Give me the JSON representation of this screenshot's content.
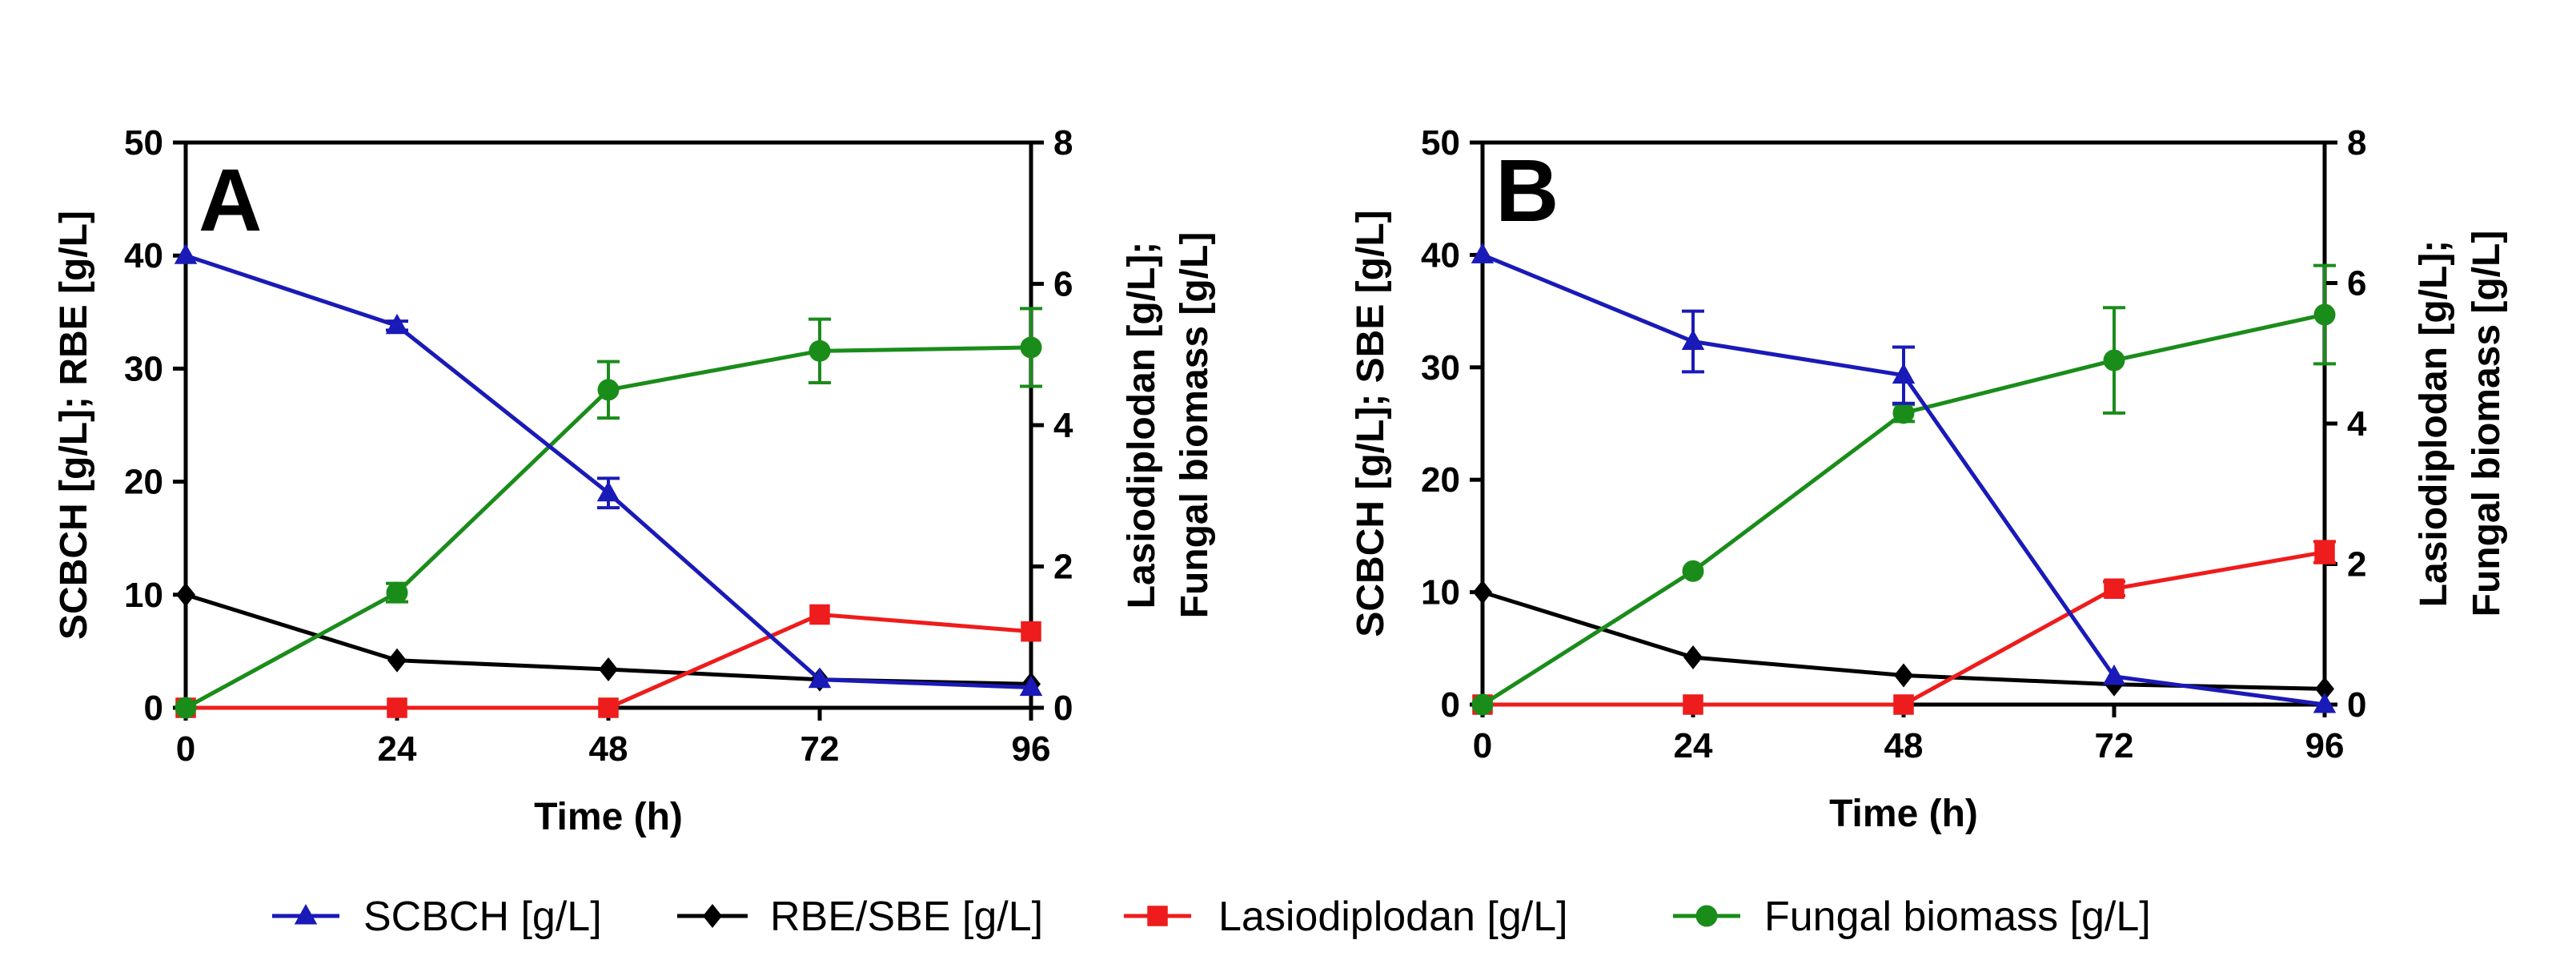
{
  "chart_data": [
    {
      "type": "line",
      "panel_label": "A",
      "xlabel": "Time (h)",
      "ylabel_left": "SCBCH [g/L]; RBE [g/L]",
      "ylabel_right_lines": [
        "Lasiodiplodan [g/L];",
        "Fungal biomass [g/L]"
      ],
      "x": [
        0,
        24,
        48,
        72,
        96
      ],
      "xticks": [
        "0",
        "24",
        "48",
        "72",
        "96"
      ],
      "ylim_left": [
        0,
        50
      ],
      "yticks_left": [
        "0",
        "10",
        "20",
        "30",
        "40",
        "50"
      ],
      "ylim_right": [
        0,
        8
      ],
      "yticks_right": [
        "0",
        "2",
        "4",
        "6",
        "8"
      ],
      "series": [
        {
          "name": "SCBCH [g/L]",
          "axis": "left",
          "color": "#1a1ab8",
          "marker": "triangle",
          "values": [
            40.0,
            33.8,
            19.0,
            2.5,
            1.8
          ],
          "errors": [
            0,
            0.4,
            1.3,
            0,
            0
          ]
        },
        {
          "name": "RBE/SBE [g/L]",
          "axis": "left",
          "color": "#000000",
          "marker": "diamond",
          "values": [
            10.0,
            4.2,
            3.4,
            2.5,
            2.1
          ],
          "errors": [
            0,
            0,
            0,
            0,
            0
          ]
        },
        {
          "name": "Lasiodiplodan [g/L]",
          "axis": "right",
          "color": "#ee1c1c",
          "marker": "square",
          "values": [
            0.0,
            0.0,
            0.0,
            1.32,
            1.08
          ],
          "errors": [
            0,
            0,
            0,
            0,
            0
          ]
        },
        {
          "name": "Fungal biomass [g/L]",
          "axis": "right",
          "color": "#1a8c1a",
          "marker": "circle",
          "values": [
            0.0,
            1.63,
            4.5,
            5.05,
            5.1
          ],
          "errors": [
            0,
            0.13,
            0.4,
            0.45,
            0.55
          ]
        }
      ]
    },
    {
      "type": "line",
      "panel_label": "B",
      "xlabel": "Time (h)",
      "ylabel_left": "SCBCH [g/L]; SBE [g/L]",
      "ylabel_right_lines": [
        "Lasiodiplodan [g/L];",
        "Fungal biomass [g/L]"
      ],
      "x": [
        0,
        24,
        48,
        72,
        96
      ],
      "xticks": [
        "0",
        "24",
        "48",
        "72",
        "96"
      ],
      "ylim_left": [
        0,
        50
      ],
      "yticks_left": [
        "0",
        "10",
        "20",
        "30",
        "40",
        "50"
      ],
      "ylim_right": [
        0,
        8
      ],
      "yticks_right": [
        "0",
        "2",
        "4",
        "6",
        "8"
      ],
      "series": [
        {
          "name": "SCBCH [g/L]",
          "axis": "left",
          "color": "#1a1ab8",
          "marker": "triangle",
          "values": [
            40.0,
            32.3,
            29.3,
            2.5,
            0.0
          ],
          "errors": [
            0,
            2.7,
            2.5,
            0,
            0
          ]
        },
        {
          "name": "RBE/SBE [g/L]",
          "axis": "left",
          "color": "#000000",
          "marker": "diamond",
          "values": [
            10.0,
            4.2,
            2.6,
            1.8,
            1.4
          ],
          "errors": [
            0,
            0,
            0,
            0,
            0
          ]
        },
        {
          "name": "Lasiodiplodan [g/L]",
          "axis": "right",
          "color": "#ee1c1c",
          "marker": "square",
          "values": [
            0.0,
            0.0,
            0.0,
            1.65,
            2.17
          ],
          "errors": [
            0,
            0,
            0,
            0.1,
            0.15
          ]
        },
        {
          "name": "Fungal biomass [g/L]",
          "axis": "right",
          "color": "#1a8c1a",
          "marker": "circle",
          "values": [
            0.0,
            1.9,
            4.15,
            4.9,
            5.55
          ],
          "errors": [
            0,
            0,
            0.12,
            0.75,
            0.7
          ]
        }
      ]
    }
  ],
  "legend": [
    {
      "label": "SCBCH [g/L]",
      "color": "#1a1ab8",
      "marker": "triangle"
    },
    {
      "label": "RBE/SBE [g/L]",
      "color": "#000000",
      "marker": "diamond"
    },
    {
      "label": "Lasiodiplodan [g/L]",
      "color": "#ee1c1c",
      "marker": "square"
    },
    {
      "label": "Fungal biomass [g/L]",
      "color": "#1a8c1a",
      "marker": "circle"
    }
  ]
}
